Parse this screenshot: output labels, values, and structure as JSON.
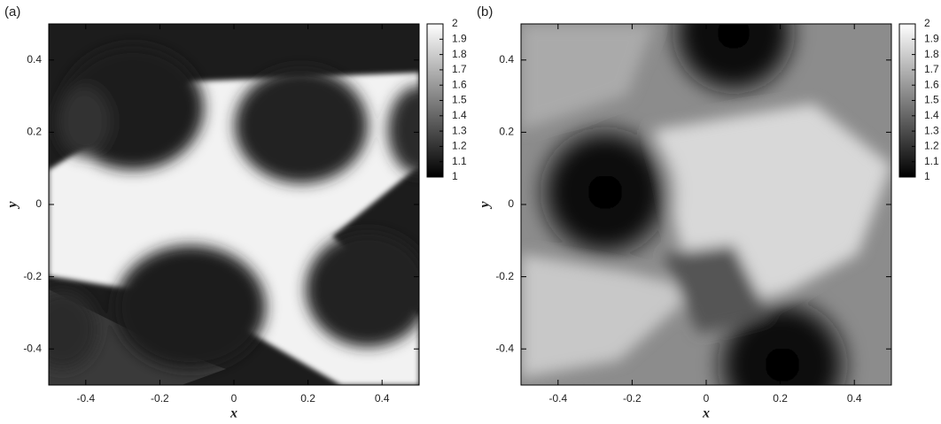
{
  "chart_data": [
    {
      "type": "image",
      "panel_label": "(a)",
      "xlabel": "x",
      "ylabel": "y",
      "xlim": [
        -0.5,
        0.5
      ],
      "ylim": [
        -0.5,
        0.5
      ],
      "xticks": [
        -0.4,
        -0.2,
        0,
        0.2,
        0.4
      ],
      "yticks": [
        -0.4,
        -0.2,
        0,
        0.2,
        0.4
      ],
      "clim": [
        1,
        2
      ],
      "cticks": [
        1,
        1.1,
        1.2,
        1.3,
        1.4,
        1.5,
        1.6,
        1.7,
        1.8,
        1.9,
        2
      ]
    },
    {
      "type": "image",
      "panel_label": "(b)",
      "xlabel": "x",
      "ylabel": "y",
      "xlim": [
        -0.5,
        0.5
      ],
      "ylim": [
        -0.5,
        0.5
      ],
      "xticks": [
        -0.4,
        -0.2,
        0,
        0.2,
        0.4
      ],
      "yticks": [
        -0.4,
        -0.2,
        0,
        0.2,
        0.4
      ],
      "clim": [
        1,
        2
      ],
      "cticks": [
        1,
        1.1,
        1.2,
        1.3,
        1.4,
        1.5,
        1.6,
        1.7,
        1.8,
        1.9,
        2
      ]
    }
  ]
}
